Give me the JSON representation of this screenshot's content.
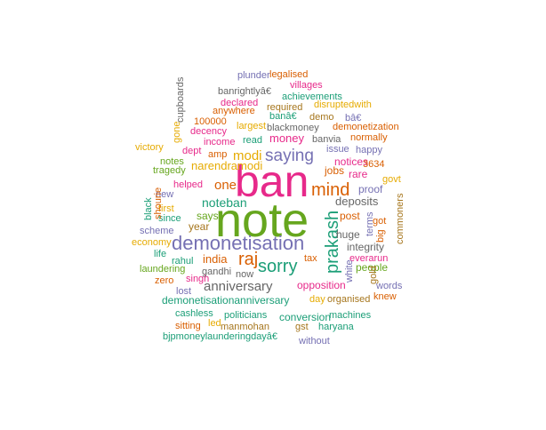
{
  "chart_data": {
    "type": "wordcloud",
    "palette": [
      "#1b9e77",
      "#d95f02",
      "#7570b3",
      "#e7298a",
      "#66a61e",
      "#e6ab02",
      "#a6761d",
      "#666666"
    ],
    "words": [
      {
        "text": "note",
        "color": "#66a61e"
      },
      {
        "text": "ban",
        "color": "#e7298a"
      },
      {
        "text": "demonetisation",
        "color": "#7570b3"
      },
      {
        "text": "mind",
        "color": "#d95f02"
      },
      {
        "text": "sorry",
        "color": "#1b9e77"
      },
      {
        "text": "prakash",
        "color": "#1b9e77"
      },
      {
        "text": "saying",
        "color": "#7570b3"
      },
      {
        "text": "raj",
        "color": "#d95f02"
      },
      {
        "text": "anniversary",
        "color": "#666666"
      },
      {
        "text": "one",
        "color": "#d95f02"
      },
      {
        "text": "modi",
        "color": "#e6ab02"
      },
      {
        "text": "noteban",
        "color": "#1b9e77"
      },
      {
        "text": "money",
        "color": "#e7298a"
      },
      {
        "text": "deposits",
        "color": "#666666"
      },
      {
        "text": "india",
        "color": "#d95f02"
      },
      {
        "text": "narendramodi",
        "color": "#e6ab02"
      },
      {
        "text": "says",
        "color": "#66a61e"
      },
      {
        "text": "year",
        "color": "#a6761d"
      },
      {
        "text": "opposition",
        "color": "#e7298a"
      },
      {
        "text": "demonetisationanniversary",
        "color": "#1b9e77"
      },
      {
        "text": "conversion",
        "color": "#1b9e77"
      },
      {
        "text": "proof",
        "color": "#7570b3"
      },
      {
        "text": "post",
        "color": "#d95f02"
      },
      {
        "text": "huge",
        "color": "#666666"
      },
      {
        "text": "integrity",
        "color": "#666666"
      },
      {
        "text": "people",
        "color": "#66a61e"
      },
      {
        "text": "notices",
        "color": "#e7298a"
      },
      {
        "text": "rare",
        "color": "#e7298a"
      },
      {
        "text": "jobs",
        "color": "#d95f02"
      },
      {
        "text": "banvia",
        "color": "#666666"
      },
      {
        "text": "blackmoney",
        "color": "#666666"
      },
      {
        "text": "read",
        "color": "#1b9e77"
      },
      {
        "text": "largest",
        "color": "#e6ab02"
      },
      {
        "text": "required",
        "color": "#a6761d"
      },
      {
        "text": "anywhere",
        "color": "#d95f02"
      },
      {
        "text": "declared",
        "color": "#e7298a"
      },
      {
        "text": "banrightlyâ€",
        "color": "#666666"
      },
      {
        "text": "decency",
        "color": "#e7298a"
      },
      {
        "text": "100000",
        "color": "#d95f02"
      },
      {
        "text": "income",
        "color": "#e7298a"
      },
      {
        "text": "dept",
        "color": "#e7298a"
      },
      {
        "text": "amp",
        "color": "#d95f02"
      },
      {
        "text": "tragedy",
        "color": "#66a61e"
      },
      {
        "text": "helped",
        "color": "#e7298a"
      },
      {
        "text": "since",
        "color": "#1b9e77"
      },
      {
        "text": "scheme",
        "color": "#7570b3"
      },
      {
        "text": "economy",
        "color": "#e6ab02"
      },
      {
        "text": "life",
        "color": "#1b9e77"
      },
      {
        "text": "rahul",
        "color": "#1b9e77"
      },
      {
        "text": "laundering",
        "color": "#66a61e"
      },
      {
        "text": "singh",
        "color": "#e7298a"
      },
      {
        "text": "gandhi",
        "color": "#666666"
      },
      {
        "text": "now",
        "color": "#666666"
      },
      {
        "text": "zero",
        "color": "#d95f02"
      },
      {
        "text": "lost",
        "color": "#7570b3"
      },
      {
        "text": "cashless",
        "color": "#1b9e77"
      },
      {
        "text": "politicians",
        "color": "#1b9e77"
      },
      {
        "text": "led",
        "color": "#e6ab02"
      },
      {
        "text": "sitting",
        "color": "#d95f02"
      },
      {
        "text": "manmohan",
        "color": "#a6761d"
      },
      {
        "text": "bjpmoneylaunderingdayâ€",
        "color": "#1b9e77"
      },
      {
        "text": "without",
        "color": "#7570b3"
      },
      {
        "text": "gst",
        "color": "#a6761d"
      },
      {
        "text": "haryana",
        "color": "#1b9e77"
      },
      {
        "text": "machines",
        "color": "#1b9e77"
      },
      {
        "text": "organised",
        "color": "#a6761d"
      },
      {
        "text": "day",
        "color": "#e6ab02"
      },
      {
        "text": "tax",
        "color": "#d95f02"
      },
      {
        "text": "everarun",
        "color": "#e7298a"
      },
      {
        "text": "knew",
        "color": "#d95f02"
      },
      {
        "text": "words",
        "color": "#7570b3"
      },
      {
        "text": "got",
        "color": "#d95f02"
      },
      {
        "text": "govt",
        "color": "#e6ab02"
      },
      {
        "text": "3634",
        "color": "#d95f02"
      },
      {
        "text": "happy",
        "color": "#7570b3"
      },
      {
        "text": "issue",
        "color": "#7570b3"
      },
      {
        "text": "normally",
        "color": "#d95f02"
      },
      {
        "text": "demonetization",
        "color": "#d95f02"
      },
      {
        "text": "bâ€",
        "color": "#7570b3"
      },
      {
        "text": "banâ€",
        "color": "#1b9e77"
      },
      {
        "text": "demo",
        "color": "#a6761d"
      },
      {
        "text": "disruptedwith",
        "color": "#e6ab02"
      },
      {
        "text": "achievements",
        "color": "#1b9e77"
      },
      {
        "text": "villages",
        "color": "#e7298a"
      },
      {
        "text": "plunder",
        "color": "#7570b3"
      },
      {
        "text": "legalised",
        "color": "#d95f02"
      },
      {
        "text": "victory",
        "color": "#e6ab02"
      },
      {
        "text": "notes",
        "color": "#66a61e"
      },
      {
        "text": "new",
        "color": "#7570b3"
      },
      {
        "text": "first",
        "color": "#e6ab02"
      },
      {
        "text": "cupboards",
        "color": "#666666"
      },
      {
        "text": "gone",
        "color": "#e6ab02"
      },
      {
        "text": "black",
        "color": "#1b9e77"
      },
      {
        "text": "shourie",
        "color": "#d95f02"
      },
      {
        "text": "terms",
        "color": "#7570b3"
      },
      {
        "text": "big",
        "color": "#d95f02"
      },
      {
        "text": "commoners",
        "color": "#a6761d"
      },
      {
        "text": "white",
        "color": "#7570b3"
      },
      {
        "text": "gold",
        "color": "#a6761d"
      }
    ]
  }
}
